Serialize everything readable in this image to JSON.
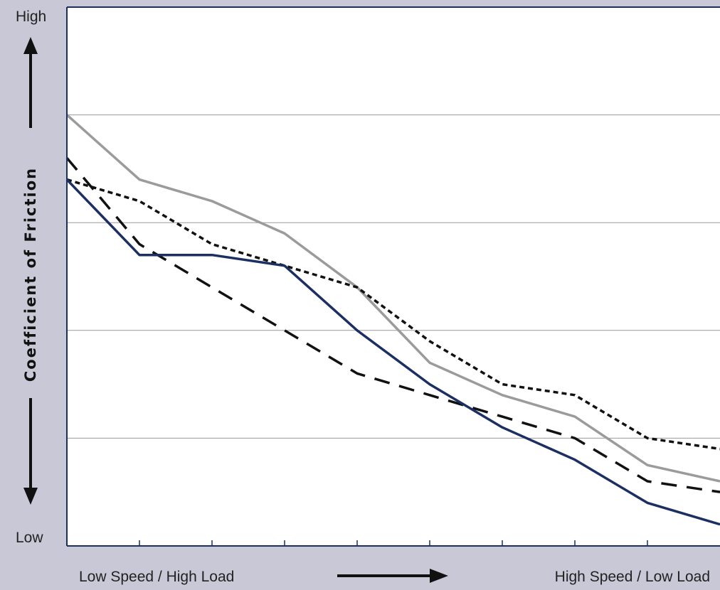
{
  "chart_data": {
    "type": "line",
    "title": "",
    "ylabel": "Coefficient of Friction",
    "y_high_label": "High",
    "y_low_label": "Low",
    "x_left_label": "Low Speed / High Load",
    "x_right_label": "High Speed / Low Load",
    "x": [
      0,
      1,
      2,
      3,
      4,
      5,
      6,
      7,
      8,
      9
    ],
    "xlim": [
      0,
      9
    ],
    "ylim": [
      0,
      5
    ],
    "grid": true,
    "series": [
      {
        "style": "solid-gray",
        "color": "#9b9b9b",
        "values": [
          4.0,
          3.4,
          3.2,
          2.9,
          2.4,
          1.7,
          1.4,
          1.2,
          0.75,
          0.6
        ]
      },
      {
        "style": "dotted-black",
        "color": "#111111",
        "values": [
          3.4,
          3.2,
          2.8,
          2.6,
          2.4,
          1.9,
          1.5,
          1.4,
          1.0,
          0.9
        ]
      },
      {
        "style": "dashed-black",
        "color": "#111111",
        "values": [
          3.6,
          2.8,
          2.4,
          2.0,
          1.6,
          1.4,
          1.2,
          1.0,
          0.6,
          0.5
        ]
      },
      {
        "style": "solid-navy",
        "color": "#1c2f63",
        "values": [
          3.4,
          2.7,
          2.7,
          2.6,
          2.0,
          1.5,
          1.1,
          0.8,
          0.4,
          0.2
        ]
      }
    ]
  }
}
